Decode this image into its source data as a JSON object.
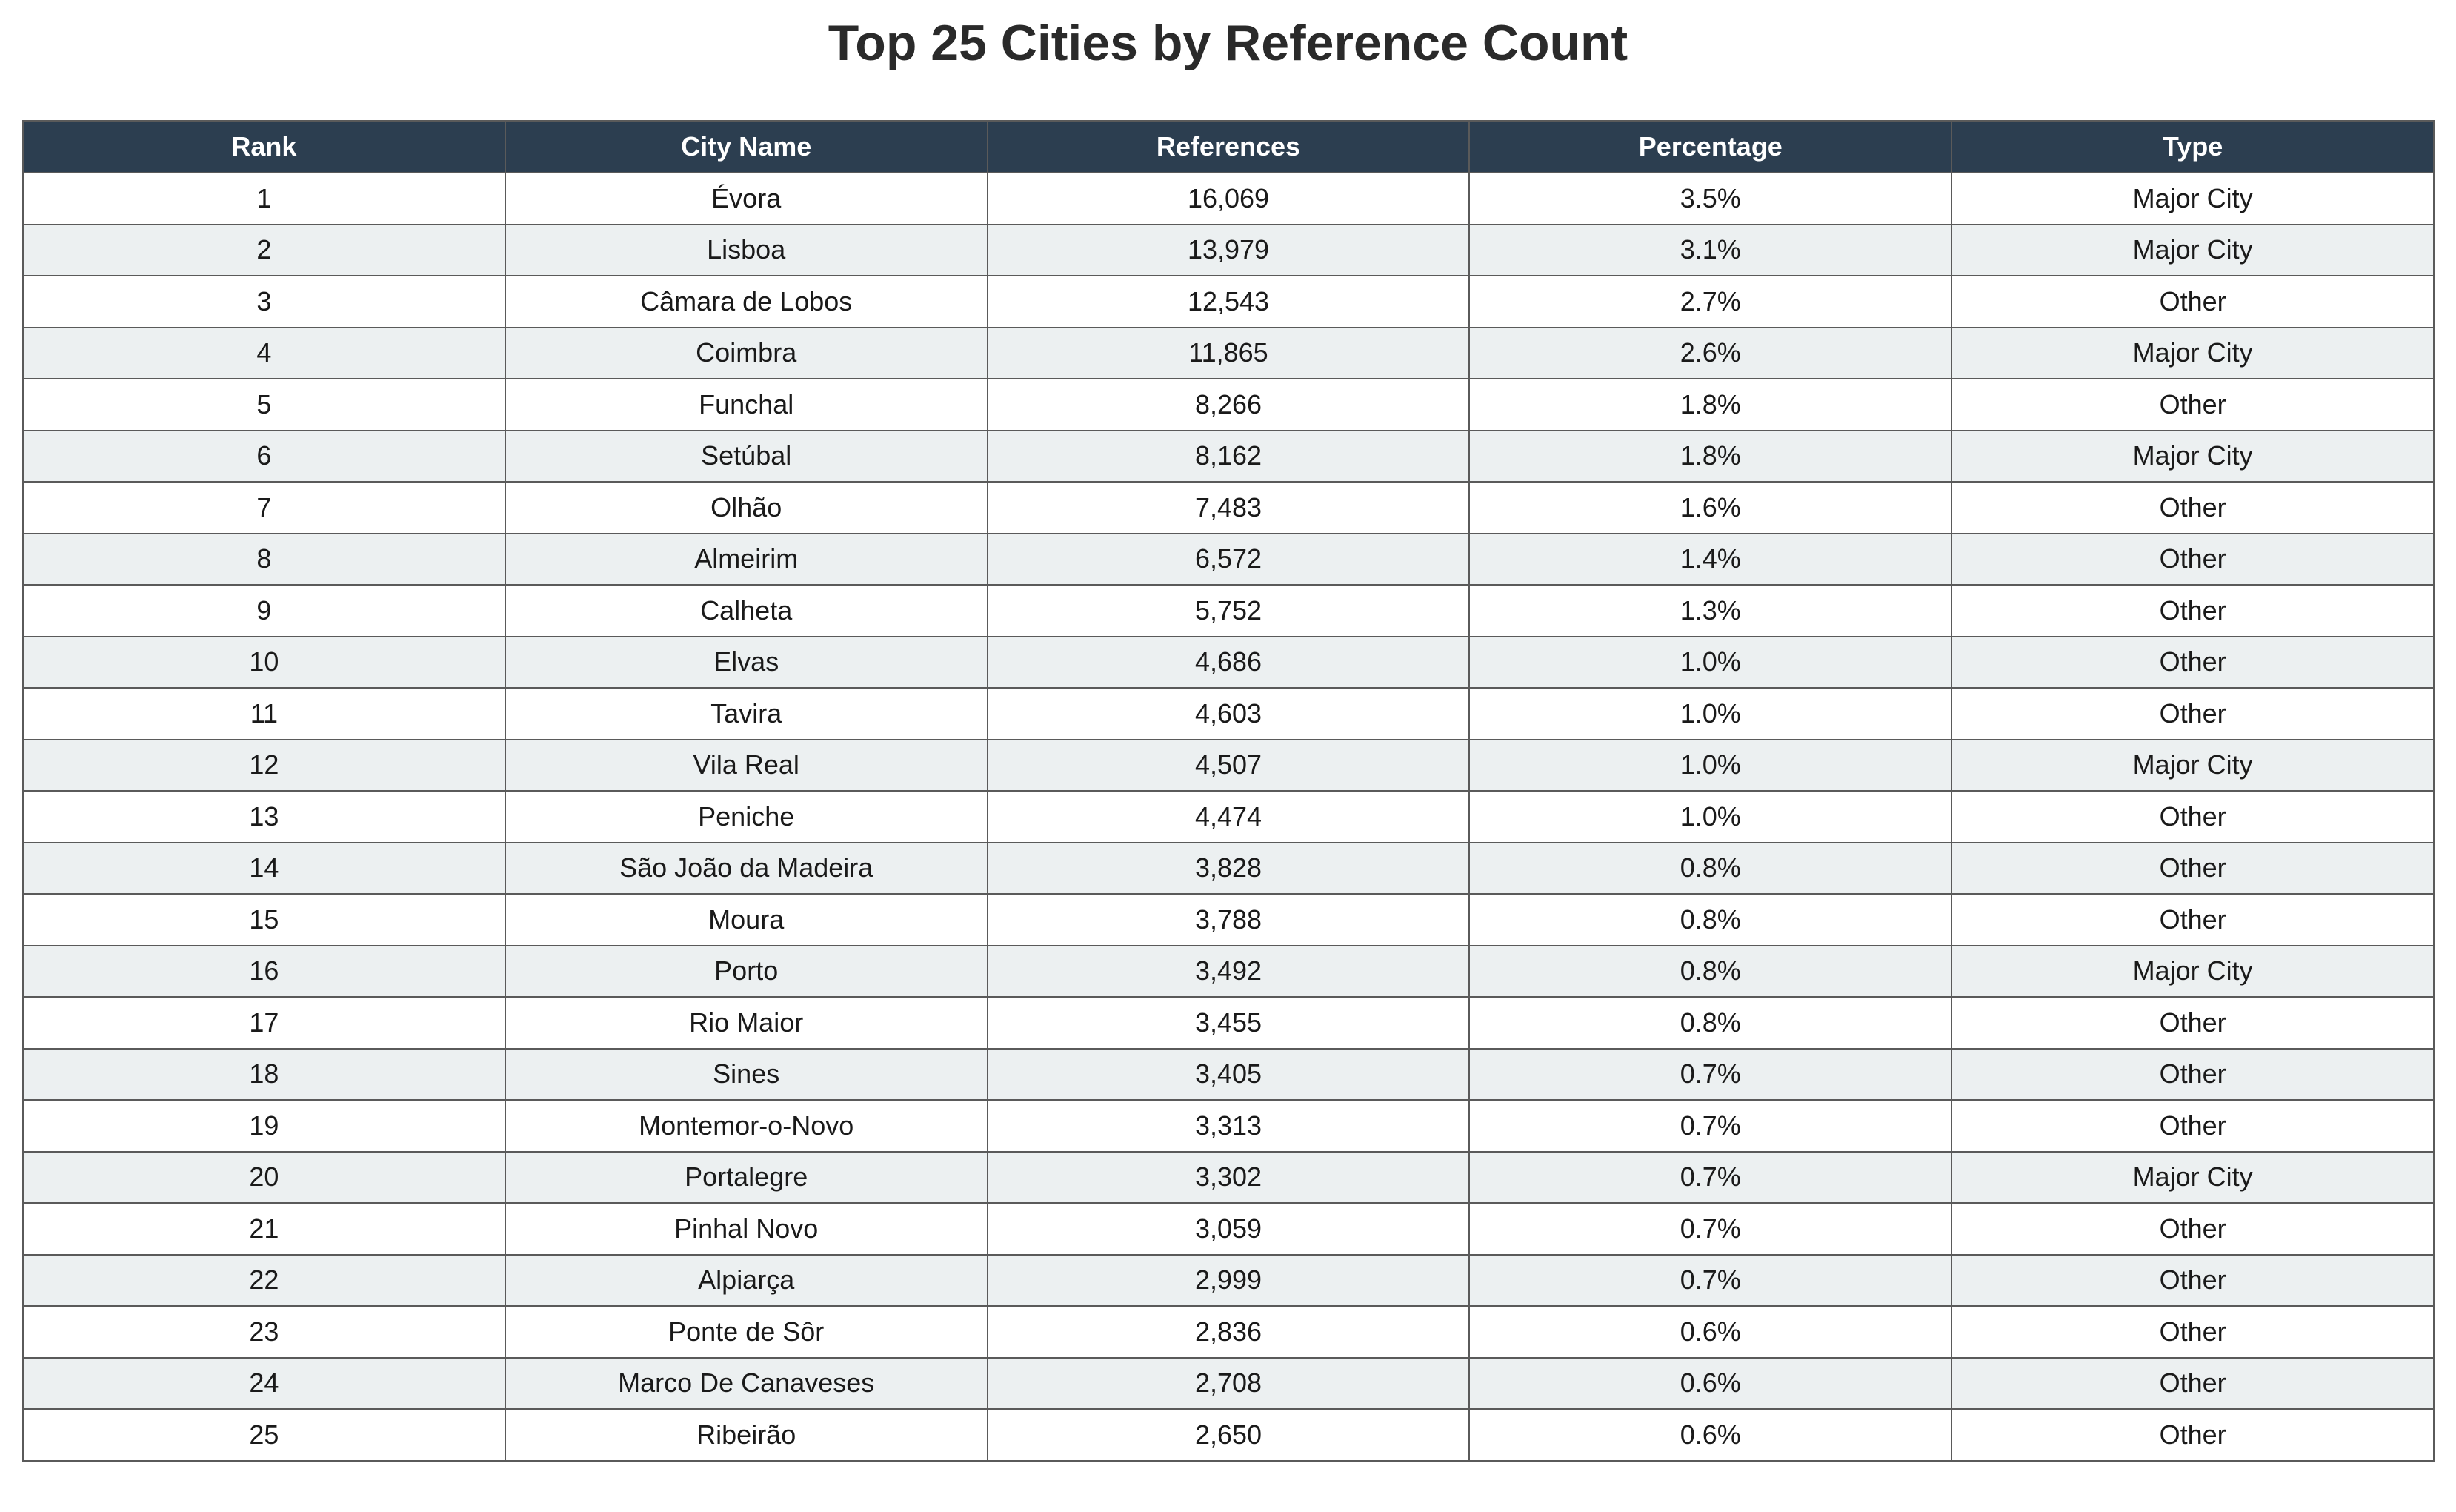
{
  "chart_data": {
    "type": "table",
    "title": "Top 25 Cities by Reference Count",
    "columns": [
      "Rank",
      "City Name",
      "References",
      "Percentage",
      "Type"
    ],
    "rows": [
      [
        "1",
        "Évora",
        "16,069",
        "3.5%",
        "Major City"
      ],
      [
        "2",
        "Lisboa",
        "13,979",
        "3.1%",
        "Major City"
      ],
      [
        "3",
        "Câmara de Lobos",
        "12,543",
        "2.7%",
        "Other"
      ],
      [
        "4",
        "Coimbra",
        "11,865",
        "2.6%",
        "Major City"
      ],
      [
        "5",
        "Funchal",
        "8,266",
        "1.8%",
        "Other"
      ],
      [
        "6",
        "Setúbal",
        "8,162",
        "1.8%",
        "Major City"
      ],
      [
        "7",
        "Olhão",
        "7,483",
        "1.6%",
        "Other"
      ],
      [
        "8",
        "Almeirim",
        "6,572",
        "1.4%",
        "Other"
      ],
      [
        "9",
        "Calheta",
        "5,752",
        "1.3%",
        "Other"
      ],
      [
        "10",
        "Elvas",
        "4,686",
        "1.0%",
        "Other"
      ],
      [
        "11",
        "Tavira",
        "4,603",
        "1.0%",
        "Other"
      ],
      [
        "12",
        "Vila Real",
        "4,507",
        "1.0%",
        "Major City"
      ],
      [
        "13",
        "Peniche",
        "4,474",
        "1.0%",
        "Other"
      ],
      [
        "14",
        "São João da Madeira",
        "3,828",
        "0.8%",
        "Other"
      ],
      [
        "15",
        "Moura",
        "3,788",
        "0.8%",
        "Other"
      ],
      [
        "16",
        "Porto",
        "3,492",
        "0.8%",
        "Major City"
      ],
      [
        "17",
        "Rio Maior",
        "3,455",
        "0.8%",
        "Other"
      ],
      [
        "18",
        "Sines",
        "3,405",
        "0.7%",
        "Other"
      ],
      [
        "19",
        "Montemor-o-Novo",
        "3,313",
        "0.7%",
        "Other"
      ],
      [
        "20",
        "Portalegre",
        "3,302",
        "0.7%",
        "Major City"
      ],
      [
        "21",
        "Pinhal Novo",
        "3,059",
        "0.7%",
        "Other"
      ],
      [
        "22",
        "Alpiarça",
        "2,999",
        "0.7%",
        "Other"
      ],
      [
        "23",
        "Ponte de Sôr",
        "2,836",
        "0.6%",
        "Other"
      ],
      [
        "24",
        "Marco De Canaveses",
        "2,708",
        "0.6%",
        "Other"
      ],
      [
        "25",
        "Ribeirão",
        "2,650",
        "0.6%",
        "Other"
      ]
    ],
    "colors": {
      "header_bg": "#2c3e50",
      "header_text": "#ffffff",
      "row_alt_bg": "#ecf0f1",
      "row_bg": "#ffffff",
      "border": "#5a5a5a"
    }
  }
}
